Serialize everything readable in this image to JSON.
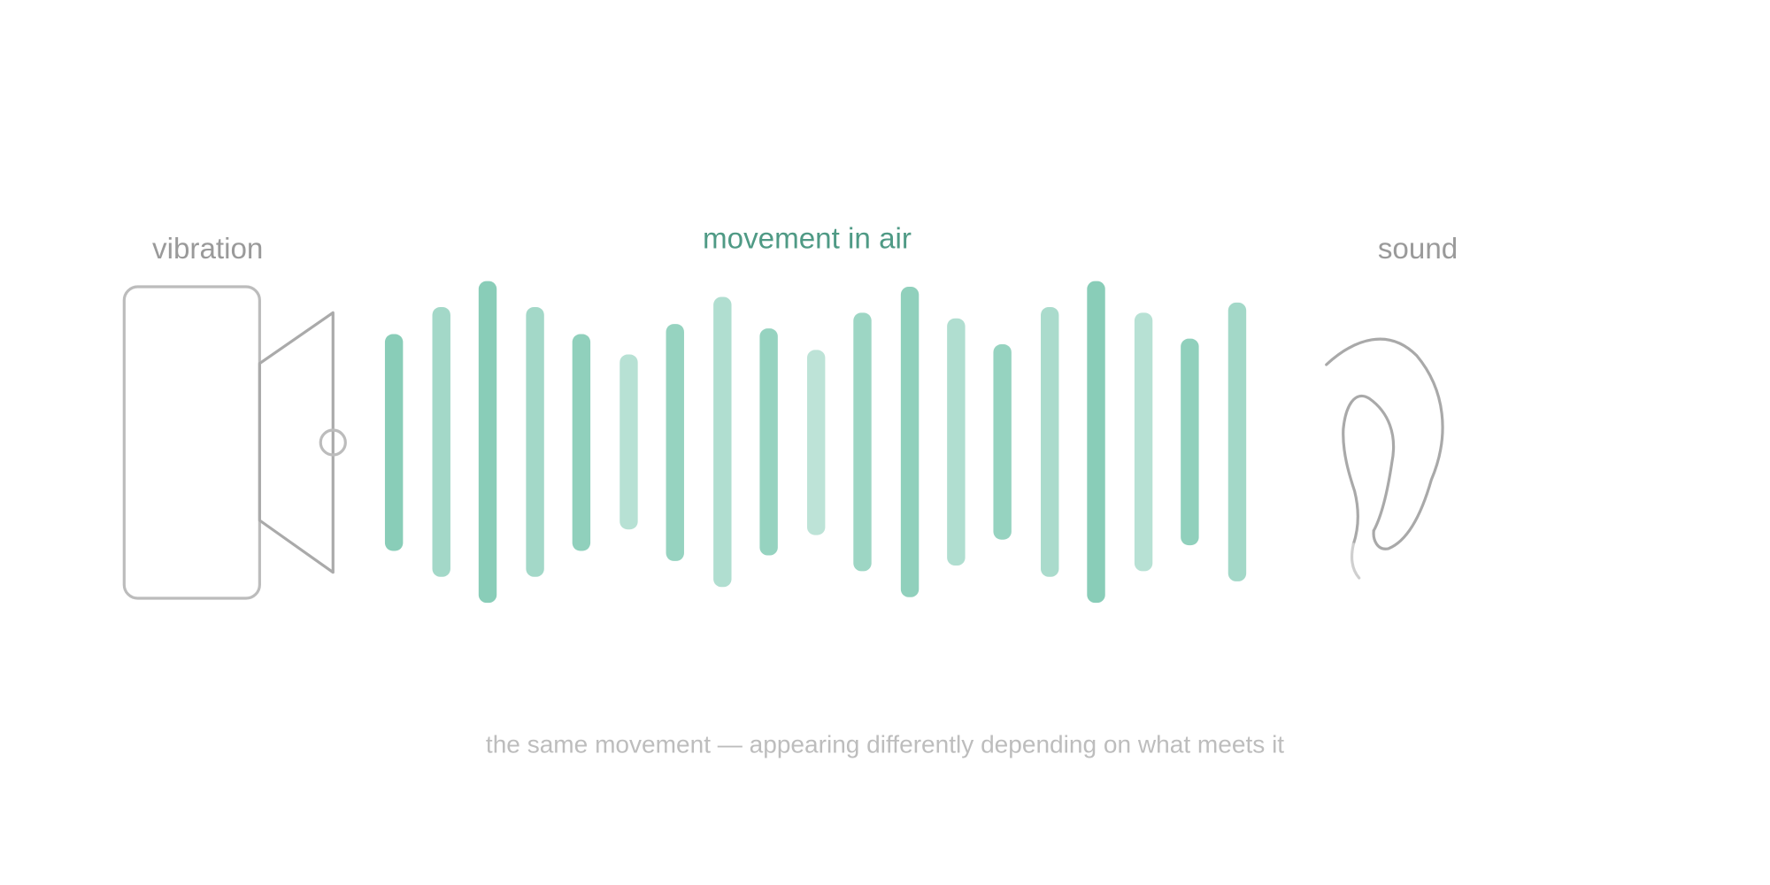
{
  "labels": {
    "source": "vibration",
    "medium": "movement in air",
    "receiver": "sound"
  },
  "caption": "the same movement — appearing differently depending on what meets it"
}
